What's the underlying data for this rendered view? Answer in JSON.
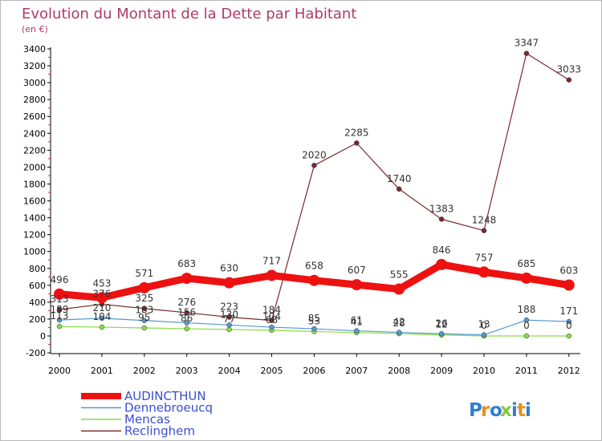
{
  "chart_data": {
    "type": "line",
    "title": "Evolution du Montant de la Dette par Habitant",
    "subtitle": "(en €)",
    "xlabel": "",
    "ylabel": "",
    "x": [
      "2000",
      "2001",
      "2002",
      "2003",
      "2004",
      "2005",
      "2006",
      "2007",
      "2008",
      "2009",
      "2010",
      "2011",
      "2012"
    ],
    "ylim": [
      -200,
      3400
    ],
    "yticks": [
      -200,
      0,
      200,
      400,
      600,
      800,
      1000,
      1200,
      1400,
      1600,
      1800,
      2000,
      2200,
      2400,
      2600,
      2800,
      3000,
      3200,
      3400
    ],
    "grid": false,
    "legend_position": "bottom-left",
    "series": [
      {
        "name": "Reclinghem",
        "color": "#7a2a2a",
        "values": [
          313,
          376,
          325,
          276,
          223,
          184,
          2020,
          2285,
          1740,
          1383,
          1248,
          3347,
          3033
        ]
      },
      {
        "name": "Mencas",
        "color": "#88dd44",
        "values": [
          113,
          104,
          95,
          86,
          77,
          68,
          53,
          41,
          28,
          12,
          0,
          0,
          0
        ]
      },
      {
        "name": "Dennebroeucq",
        "color": "#5599cc",
        "values": [
          189,
          210,
          183,
          156,
          130,
          104,
          85,
          61,
          42,
          26,
          13,
          188,
          171
        ]
      },
      {
        "name": "AUDINCTHUN",
        "color": "#ee1111",
        "values": [
          496,
          453,
          571,
          683,
          630,
          717,
          658,
          607,
          555,
          846,
          757,
          685,
          603
        ]
      }
    ]
  },
  "logo": {
    "text": "Proxiti"
  }
}
